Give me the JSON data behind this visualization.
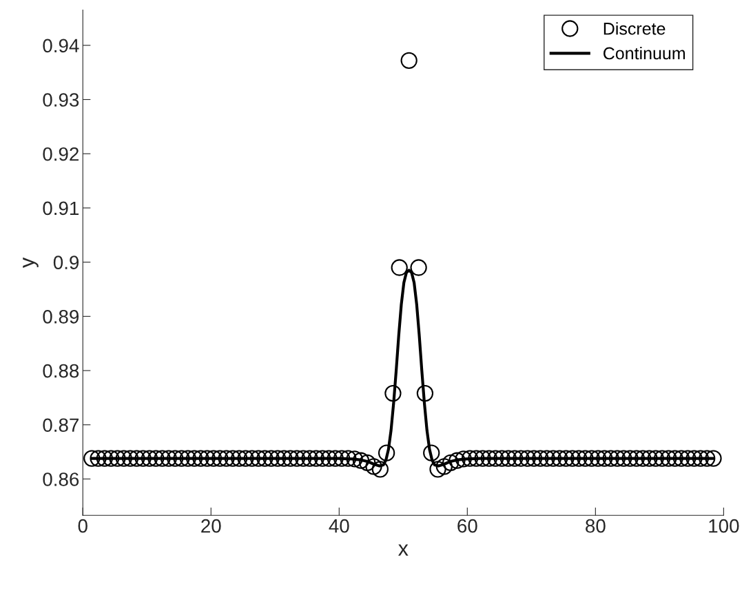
{
  "chart_data": {
    "type": "scatter",
    "xlabel": "x",
    "ylabel": "y",
    "xlim": [
      0,
      100
    ],
    "xticks": [
      0,
      20,
      40,
      60,
      80,
      100
    ],
    "ylim": [
      0.8533,
      0.9465
    ],
    "yticks": [
      0.86,
      0.87,
      0.88,
      0.89,
      0.9,
      0.91,
      0.92,
      0.93,
      0.94
    ],
    "grid": false,
    "legend": "top right",
    "series": [
      {
        "name": "Discrete",
        "color": "#000000",
        "marker": "circle",
        "x": [
          1.4,
          2.4,
          3.4,
          4.4,
          5.4,
          6.4,
          7.4,
          8.4,
          9.4,
          10.4,
          11.4,
          12.4,
          13.4,
          14.4,
          15.4,
          16.4,
          17.4,
          18.4,
          19.4,
          20.4,
          21.4,
          22.4,
          23.4,
          24.4,
          25.4,
          26.4,
          27.4,
          28.4,
          29.4,
          30.4,
          31.4,
          32.4,
          33.4,
          34.4,
          35.4,
          36.4,
          37.4,
          38.4,
          39.4,
          40.4,
          41.4,
          42.4,
          43.4,
          44.4,
          45.4,
          46.4,
          47.4,
          48.4,
          49.4,
          50.9,
          52.4,
          53.4,
          54.4,
          55.4,
          56.4,
          57.4,
          58.4,
          59.4,
          60.4,
          61.4,
          62.4,
          63.4,
          64.4,
          65.4,
          66.4,
          67.4,
          68.4,
          69.4,
          70.4,
          71.4,
          72.4,
          73.4,
          74.4,
          75.4,
          76.4,
          77.4,
          78.4,
          79.4,
          80.4,
          81.4,
          82.4,
          83.4,
          84.4,
          85.4,
          86.4,
          87.4,
          88.4,
          89.4,
          90.4,
          91.4,
          92.4,
          93.4,
          94.4,
          95.4,
          96.4,
          97.4,
          98.4
        ],
        "values": [
          0.8638,
          0.8638,
          0.8638,
          0.8638,
          0.8638,
          0.8638,
          0.8638,
          0.8638,
          0.8638,
          0.8638,
          0.8638,
          0.8638,
          0.8638,
          0.8638,
          0.8638,
          0.8638,
          0.8638,
          0.8638,
          0.8638,
          0.8638,
          0.8638,
          0.8638,
          0.8638,
          0.8638,
          0.8638,
          0.8638,
          0.8638,
          0.8638,
          0.8638,
          0.8638,
          0.8638,
          0.8638,
          0.8638,
          0.8638,
          0.8638,
          0.8638,
          0.8638,
          0.8638,
          0.8638,
          0.8638,
          0.8638,
          0.8637,
          0.8634,
          0.863,
          0.8623,
          0.8618,
          0.8648,
          0.8758,
          0.899,
          0.9372,
          0.899,
          0.8758,
          0.8648,
          0.8618,
          0.8623,
          0.863,
          0.8634,
          0.8637,
          0.8638,
          0.8638,
          0.8638,
          0.8638,
          0.8638,
          0.8638,
          0.8638,
          0.8638,
          0.8638,
          0.8638,
          0.8638,
          0.8638,
          0.8638,
          0.8638,
          0.8638,
          0.8638,
          0.8638,
          0.8638,
          0.8638,
          0.8638,
          0.8638,
          0.8638,
          0.8638,
          0.8638,
          0.8638,
          0.8638,
          0.8638,
          0.8638,
          0.8638,
          0.8638,
          0.8638,
          0.8638,
          0.8638,
          0.8638,
          0.8638,
          0.8638,
          0.8638,
          0.8638,
          0.8638
        ]
      },
      {
        "name": "Continuum",
        "type": "line",
        "color": "#000000",
        "marker": "none",
        "line_style": "solid",
        "x": [
          1.4,
          40,
          42,
          43.5,
          44.5,
          45.5,
          46.3,
          46.9,
          47.3,
          47.7,
          48.1,
          48.5,
          48.9,
          49.3,
          49.7,
          50.1,
          50.5,
          50.9,
          51.3,
          51.7,
          52.1,
          52.5,
          52.9,
          53.3,
          53.7,
          54.1,
          54.5,
          54.9,
          55.5,
          56.3,
          57.3,
          58.3,
          59.8,
          62,
          98.4
        ],
        "values": [
          0.8638,
          0.8638,
          0.8637,
          0.8635,
          0.8632,
          0.8627,
          0.8624,
          0.8626,
          0.8635,
          0.8655,
          0.869,
          0.874,
          0.88,
          0.8865,
          0.8922,
          0.8962,
          0.8981,
          0.8985,
          0.8981,
          0.8962,
          0.8922,
          0.8865,
          0.88,
          0.874,
          0.869,
          0.8655,
          0.8635,
          0.8626,
          0.8624,
          0.8627,
          0.8632,
          0.8635,
          0.8637,
          0.8638,
          0.8638
        ]
      }
    ]
  }
}
